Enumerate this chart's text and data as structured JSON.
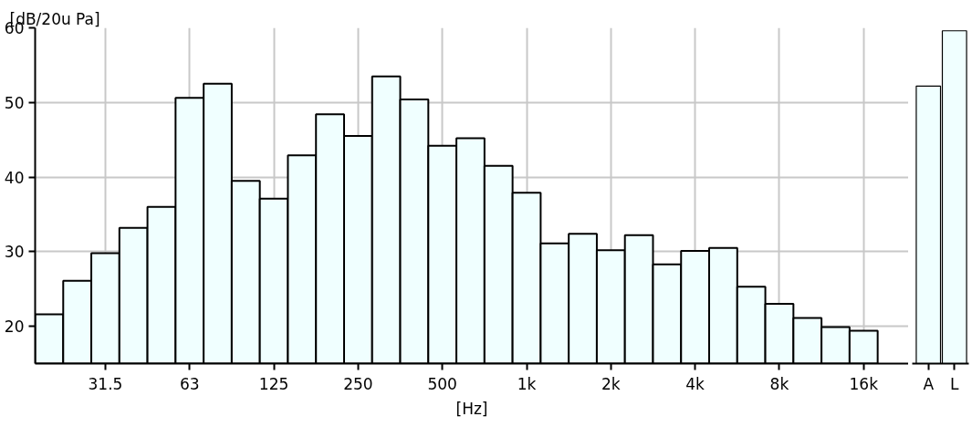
{
  "chart_data": [
    {
      "type": "bar",
      "ylabel": "[dB/20u Pa]",
      "xlabel": "[Hz]",
      "categories": [
        null,
        null,
        "31.5",
        null,
        null,
        "63",
        null,
        null,
        "125",
        null,
        null,
        "250",
        null,
        null,
        "500",
        null,
        null,
        "1k",
        null,
        null,
        "2k",
        null,
        null,
        "4k",
        null,
        null,
        "8k",
        null,
        null,
        "16k"
      ],
      "values": [
        21.6,
        26.1,
        29.8,
        33.2,
        36.0,
        50.6,
        52.5,
        39.5,
        37.1,
        42.9,
        48.4,
        45.5,
        53.5,
        50.4,
        44.2,
        45.2,
        41.5,
        37.9,
        31.1,
        32.4,
        30.2,
        32.2,
        28.3,
        30.1,
        30.5,
        25.3,
        23.0,
        21.1,
        19.9,
        19.4
      ],
      "color": "#f0ffff",
      "ylim": [
        15,
        60
      ],
      "yticks": [
        20,
        30,
        40,
        50,
        60
      ],
      "grid": true
    },
    {
      "type": "bar",
      "categories": [
        "A",
        "L"
      ],
      "values": [
        52.2,
        59.6
      ],
      "color": "#f0ffff",
      "ylim": [
        15,
        60
      ],
      "grid": false,
      "tick_labels": "x"
    }
  ]
}
